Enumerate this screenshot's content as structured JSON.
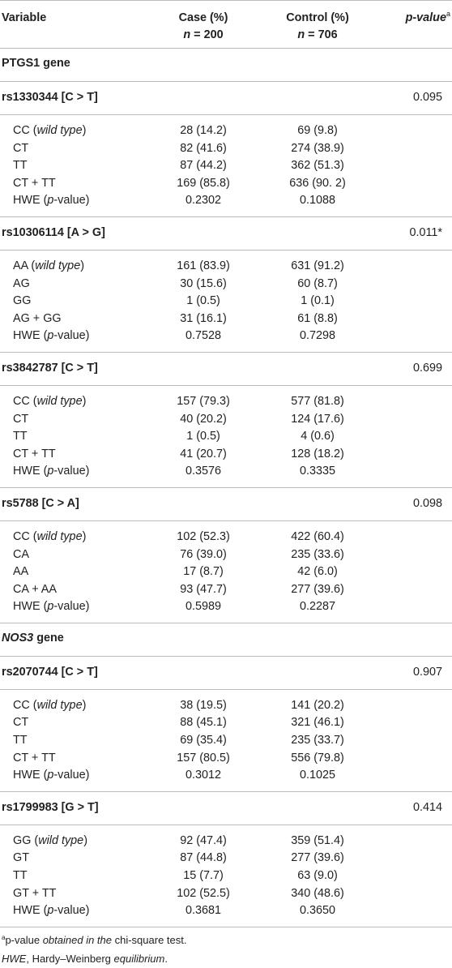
{
  "header": {
    "variable": "Variable",
    "case_label": "Case (%)",
    "case_n": "n = 200",
    "control_label": "Control (%)",
    "control_n": "n = 706",
    "pvalue_label": "p-value",
    "pvalue_sup": "a"
  },
  "genes": [
    {
      "name": "PTGS1 gene",
      "italic": false,
      "snps": [
        {
          "name": "rs1330344 [C > T]",
          "p": "0.095",
          "rows": [
            {
              "label": "CC (wild type)",
              "case": "28 (14.2)",
              "control": "69 (9.8)"
            },
            {
              "label": "CT",
              "case": "82 (41.6)",
              "control": "274 (38.9)"
            },
            {
              "label": "TT",
              "case": "87 (44.2)",
              "control": "362 (51.3)"
            },
            {
              "label": "CT + TT",
              "case": "169 (85.8)",
              "control": "636 (90. 2)"
            },
            {
              "label": "HWE (p-value)",
              "case": "0.2302",
              "control": "0.1088"
            }
          ]
        },
        {
          "name": "rs10306114 [A > G]",
          "p": "0.011*",
          "rows": [
            {
              "label": "AA (wild type)",
              "case": "161 (83.9)",
              "control": "631 (91.2)"
            },
            {
              "label": "AG",
              "case": "30 (15.6)",
              "control": "60 (8.7)"
            },
            {
              "label": "GG",
              "case": "1 (0.5)",
              "control": "1 (0.1)"
            },
            {
              "label": "AG + GG",
              "case": "31 (16.1)",
              "control": "61 (8.8)"
            },
            {
              "label": "HWE (p-value)",
              "case": "0.7528",
              "control": "0.7298"
            }
          ]
        },
        {
          "name": "rs3842787 [C > T]",
          "p": "0.699",
          "rows": [
            {
              "label": "CC (wild type)",
              "case": "157 (79.3)",
              "control": "577 (81.8)"
            },
            {
              "label": "CT",
              "case": "40 (20.2)",
              "control": "124 (17.6)"
            },
            {
              "label": "TT",
              "case": "1 (0.5)",
              "control": "4 (0.6)"
            },
            {
              "label": "CT + TT",
              "case": "41 (20.7)",
              "control": "128 (18.2)"
            },
            {
              "label": "HWE (p-value)",
              "case": "0.3576",
              "control": "0.3335"
            }
          ]
        },
        {
          "name": "rs5788 [C > A]",
          "p": "0.098",
          "rows": [
            {
              "label": "CC (wild type)",
              "case": "102 (52.3)",
              "control": "422 (60.4)"
            },
            {
              "label": "CA",
              "case": "76 (39.0)",
              "control": "235 (33.6)"
            },
            {
              "label": "AA",
              "case": "17 (8.7)",
              "control": "42 (6.0)"
            },
            {
              "label": "CA + AA",
              "case": "93 (47.7)",
              "control": "277 (39.6)"
            },
            {
              "label": "HWE (p-value)",
              "case": "0.5989",
              "control": "0.2287"
            }
          ]
        }
      ]
    },
    {
      "name": "NOS3",
      "suffix": " gene",
      "italic": true,
      "snps": [
        {
          "name": "rs2070744 [C > T]",
          "p": "0.907",
          "rows": [
            {
              "label": "CC (wild type)",
              "case": "38 (19.5)",
              "control": "141 (20.2)"
            },
            {
              "label": "CT",
              "case": "88 (45.1)",
              "control": "321 (46.1)"
            },
            {
              "label": "TT",
              "case": "69 (35.4)",
              "control": "235 (33.7)"
            },
            {
              "label": "CT + TT",
              "case": "157 (80.5)",
              "control": "556 (79.8)"
            },
            {
              "label": "HWE (p-value)",
              "case": "0.3012",
              "control": "0.1025"
            }
          ]
        },
        {
          "name": "rs1799983 [G > T]",
          "p": "0.414",
          "rows": [
            {
              "label": "GG (wild type)",
              "case": "92 (47.4)",
              "control": "359 (51.4)"
            },
            {
              "label": "GT",
              "case": "87 (44.8)",
              "control": "277 (39.6)"
            },
            {
              "label": "TT",
              "case": "15 (7.7)",
              "control": "63 (9.0)"
            },
            {
              "label": "GT + TT",
              "case": "102 (52.5)",
              "control": "340 (48.6)"
            },
            {
              "label": "HWE (p-value)",
              "case": "0.3681",
              "control": "0.3650"
            }
          ]
        }
      ]
    }
  ],
  "footnotes": {
    "a_sup": "a",
    "a_text": "p-value obtained in the chi-square test.",
    "hwe_text": "HWE, Hardy–Weinberg equilibrium."
  }
}
